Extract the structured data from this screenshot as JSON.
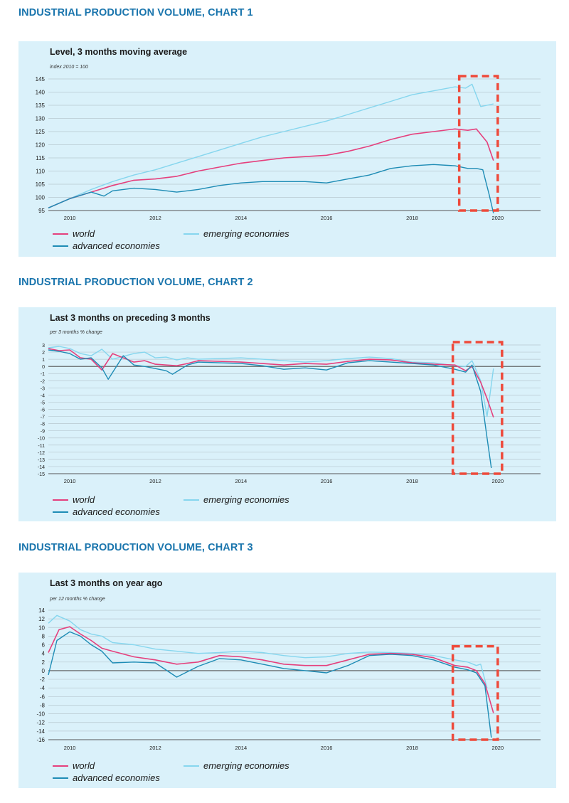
{
  "charts": [
    {
      "heading": "INDUSTRIAL PRODUCTION VOLUME, CHART 1",
      "subtitle": "Level, 3 months moving average",
      "unit": "index 2010 = 100",
      "legend": {
        "world": "world",
        "advanced": "advanced economies",
        "emerging": "emerging economies"
      }
    },
    {
      "heading": "INDUSTRIAL PRODUCTION VOLUME, CHART 2",
      "subtitle": "Last 3 months on preceding 3 months",
      "unit": "per 3 months % change",
      "legend": {
        "world": "world",
        "advanced": "advanced economies",
        "emerging": "emerging economies"
      }
    },
    {
      "heading": "INDUSTRIAL PRODUCTION VOLUME, CHART 3",
      "subtitle": "Last 3 months on year ago",
      "unit": "per 12 months % change",
      "legend": {
        "world": "world",
        "advanced": "advanced economies",
        "emerging": "emerging economies"
      }
    }
  ],
  "colors": {
    "world": "#e5407d",
    "advanced": "#1e8cb5",
    "emerging": "#86d6ee",
    "highlight": "#ee4a3b",
    "grid": "#b7c8d0",
    "panel": "#daf1fa",
    "heading": "#1a75ad"
  },
  "chart_data": [
    {
      "type": "line",
      "title": "Level, 3 months moving average",
      "ylabel": "index 2010 = 100",
      "ylim": [
        95,
        145
      ],
      "yticks": [
        95,
        100,
        105,
        110,
        115,
        120,
        125,
        130,
        135,
        140,
        145
      ],
      "xlim": [
        2009.5,
        2021
      ],
      "xticks": [
        2010,
        2012,
        2014,
        2016,
        2018,
        2020
      ],
      "highlight": {
        "x": [
          2019.1,
          2020.0
        ],
        "y": [
          95,
          145
        ]
      },
      "series": [
        {
          "name": "world",
          "x": [
            2009.5,
            2010.0,
            2010.5,
            2011.0,
            2011.5,
            2012.0,
            2012.5,
            2013.0,
            2013.5,
            2014.0,
            2014.5,
            2015.0,
            2015.5,
            2016.0,
            2016.5,
            2017.0,
            2017.5,
            2018.0,
            2018.5,
            2019.0,
            2019.3,
            2019.5,
            2019.6,
            2019.75,
            2019.9
          ],
          "y": [
            96,
            99.5,
            102,
            104.5,
            106.5,
            107,
            108,
            110,
            111.5,
            113,
            114,
            115,
            115.5,
            116,
            117.5,
            119.5,
            122,
            124,
            125,
            126,
            125.5,
            126,
            124,
            121,
            114
          ]
        },
        {
          "name": "emerging economies",
          "x": [
            2009.5,
            2010.0,
            2010.5,
            2011.0,
            2011.5,
            2012.0,
            2012.5,
            2013.0,
            2013.5,
            2014.0,
            2014.5,
            2015.0,
            2015.5,
            2016.0,
            2016.5,
            2017.0,
            2017.5,
            2018.0,
            2018.5,
            2019.0,
            2019.25,
            2019.4,
            2019.6,
            2019.75,
            2019.9
          ],
          "y": [
            96,
            99.5,
            103,
            106,
            108.5,
            110.5,
            113,
            115.5,
            118,
            120.5,
            123,
            125,
            127,
            129,
            131.5,
            134,
            136.5,
            139,
            140.5,
            142,
            141.5,
            143,
            134.5,
            135,
            135.5
          ]
        },
        {
          "name": "advanced economies",
          "x": [
            2009.5,
            2010.0,
            2010.5,
            2010.8,
            2011.0,
            2011.5,
            2012.0,
            2012.5,
            2013.0,
            2013.5,
            2014.0,
            2014.5,
            2015.0,
            2015.5,
            2016.0,
            2016.5,
            2017.0,
            2017.5,
            2018.0,
            2018.5,
            2019.0,
            2019.3,
            2019.5,
            2019.65,
            2019.8,
            2019.9
          ],
          "y": [
            96,
            99.5,
            102,
            100.5,
            102.5,
            103.5,
            103,
            102,
            103,
            104.5,
            105.5,
            106,
            106,
            106,
            105.5,
            107,
            108.5,
            111,
            112,
            112.5,
            112,
            111,
            111,
            110.5,
            101,
            94
          ]
        }
      ]
    },
    {
      "type": "line",
      "title": "Last 3 months on preceding 3 months",
      "ylabel": "per 3 months % change",
      "ylim": [
        -15,
        3
      ],
      "yticks": [
        3,
        2,
        1,
        0,
        -1,
        -2,
        -3,
        -4,
        -5,
        -6,
        -7,
        -8,
        -9,
        -10,
        -11,
        -12,
        -13,
        -14,
        -15
      ],
      "xlim": [
        2009.5,
        2021
      ],
      "xticks": [
        2010,
        2012,
        2014,
        2016,
        2018,
        2020
      ],
      "highlight": {
        "x": [
          2018.95,
          2020.1
        ],
        "y": [
          -15,
          3
        ]
      },
      "series": [
        {
          "name": "world",
          "x": [
            2009.5,
            2009.75,
            2010.0,
            2010.25,
            2010.5,
            2010.75,
            2011.0,
            2011.25,
            2011.5,
            2011.75,
            2012.0,
            2012.25,
            2012.5,
            2012.75,
            2013.0,
            2013.5,
            2014.0,
            2014.5,
            2015.0,
            2015.5,
            2016.0,
            2016.5,
            2017.0,
            2017.5,
            2018.0,
            2018.5,
            2019.0,
            2019.25,
            2019.4,
            2019.6,
            2019.75,
            2019.9
          ],
          "y": [
            2.5,
            2.2,
            2.3,
            1.2,
            1.0,
            -0.5,
            1.8,
            1.2,
            0.6,
            0.8,
            0.3,
            0.2,
            0.1,
            0.4,
            0.8,
            0.7,
            0.6,
            0.4,
            0.2,
            0.4,
            0.3,
            0.7,
            1.0,
            0.9,
            0.5,
            0.3,
            0.2,
            -0.6,
            0.0,
            -2.2,
            -4.5,
            -7.1
          ]
        },
        {
          "name": "emerging economies",
          "x": [
            2009.5,
            2009.75,
            2010.0,
            2010.25,
            2010.5,
            2010.75,
            2011.0,
            2011.25,
            2011.5,
            2011.75,
            2012.0,
            2012.25,
            2012.5,
            2012.75,
            2013.0,
            2013.5,
            2014.0,
            2014.5,
            2015.0,
            2015.5,
            2016.0,
            2016.5,
            2017.0,
            2017.5,
            2018.0,
            2018.5,
            2019.0,
            2019.25,
            2019.4,
            2019.6,
            2019.75,
            2019.9
          ],
          "y": [
            2.6,
            2.8,
            2.5,
            1.8,
            1.5,
            2.4,
            1.0,
            1.4,
            1.8,
            2.0,
            1.2,
            1.3,
            0.9,
            1.2,
            1.0,
            1.1,
            1.2,
            1.0,
            0.8,
            0.6,
            0.8,
            1.1,
            1.3,
            1.1,
            0.6,
            0.5,
            0.1,
            0.0,
            0.8,
            -2.0,
            -7.0,
            -0.3
          ]
        },
        {
          "name": "advanced economies",
          "x": [
            2009.5,
            2009.75,
            2010.0,
            2010.25,
            2010.5,
            2010.75,
            2010.9,
            2011.25,
            2011.5,
            2011.75,
            2012.0,
            2012.25,
            2012.4,
            2012.75,
            2013.0,
            2013.5,
            2014.0,
            2014.5,
            2015.0,
            2015.5,
            2016.0,
            2016.5,
            2017.0,
            2017.5,
            2018.0,
            2018.5,
            2019.0,
            2019.25,
            2019.4,
            2019.6,
            2019.75,
            2019.85
          ],
          "y": [
            2.3,
            2.1,
            1.8,
            1.0,
            1.2,
            -0.2,
            -1.8,
            1.5,
            0.2,
            0.0,
            -0.3,
            -0.6,
            -1.1,
            0.2,
            0.6,
            0.5,
            0.4,
            0.1,
            -0.4,
            -0.2,
            -0.5,
            0.5,
            0.8,
            0.6,
            0.4,
            0.2,
            -0.4,
            -0.8,
            0.2,
            -3.5,
            -10.0,
            -14.2
          ]
        }
      ]
    },
    {
      "type": "line",
      "title": "Last 3 months on year ago",
      "ylabel": "per 12 months % change",
      "ylim": [
        -16,
        14
      ],
      "yticks": [
        14,
        12,
        10,
        8,
        6,
        4,
        2,
        0,
        -2,
        -4,
        -6,
        -8,
        -10,
        -12,
        -14,
        -16
      ],
      "xlim": [
        2009.5,
        2021
      ],
      "xticks": [
        2010,
        2012,
        2014,
        2016,
        2018,
        2020
      ],
      "highlight": {
        "x": [
          2018.95,
          2020.0
        ],
        "y": [
          -16,
          5
        ]
      },
      "series": [
        {
          "name": "world",
          "x": [
            2009.5,
            2009.75,
            2010.0,
            2010.25,
            2010.5,
            2010.75,
            2011.0,
            2011.5,
            2012.0,
            2012.5,
            2013.0,
            2013.5,
            2014.0,
            2014.5,
            2015.0,
            2015.5,
            2016.0,
            2016.5,
            2017.0,
            2017.5,
            2018.0,
            2018.5,
            2019.0,
            2019.3,
            2019.5,
            2019.7,
            2019.9
          ],
          "y": [
            4.2,
            9.5,
            10.2,
            8.5,
            7.0,
            5.2,
            4.5,
            3.2,
            2.5,
            1.5,
            2.0,
            3.5,
            3.2,
            2.5,
            1.5,
            1.2,
            1.2,
            2.5,
            3.8,
            4.0,
            3.8,
            3.0,
            1.2,
            0.8,
            0.0,
            -3.0,
            -9.8
          ]
        },
        {
          "name": "emerging economies",
          "x": [
            2009.5,
            2009.7,
            2010.0,
            2010.25,
            2010.5,
            2010.75,
            2011.0,
            2011.5,
            2012.0,
            2012.5,
            2013.0,
            2013.5,
            2014.0,
            2014.5,
            2015.0,
            2015.5,
            2016.0,
            2016.5,
            2017.0,
            2017.5,
            2018.0,
            2018.5,
            2019.0,
            2019.3,
            2019.5,
            2019.6,
            2019.75
          ],
          "y": [
            11.0,
            12.8,
            11.5,
            9.5,
            8.5,
            8.0,
            6.5,
            6.0,
            5.0,
            4.5,
            4.0,
            4.2,
            4.5,
            4.2,
            3.5,
            3.0,
            3.2,
            4.0,
            4.3,
            4.2,
            4.0,
            3.5,
            2.5,
            2.0,
            1.2,
            1.5,
            -4.0
          ]
        },
        {
          "name": "advanced economies",
          "x": [
            2009.5,
            2009.7,
            2010.0,
            2010.25,
            2010.5,
            2010.75,
            2011.0,
            2011.5,
            2012.0,
            2012.5,
            2013.0,
            2013.5,
            2014.0,
            2014.5,
            2015.0,
            2015.5,
            2016.0,
            2016.5,
            2017.0,
            2017.5,
            2018.0,
            2018.5,
            2019.0,
            2019.3,
            2019.5,
            2019.7,
            2019.85
          ],
          "y": [
            -1.0,
            7.0,
            9.0,
            8.0,
            6.0,
            4.5,
            1.8,
            2.0,
            1.8,
            -1.5,
            1.0,
            2.8,
            2.5,
            1.5,
            0.5,
            0.0,
            -0.5,
            1.2,
            3.5,
            3.8,
            3.5,
            2.5,
            0.8,
            0.2,
            -0.5,
            -3.5,
            -15.5
          ]
        }
      ]
    }
  ]
}
